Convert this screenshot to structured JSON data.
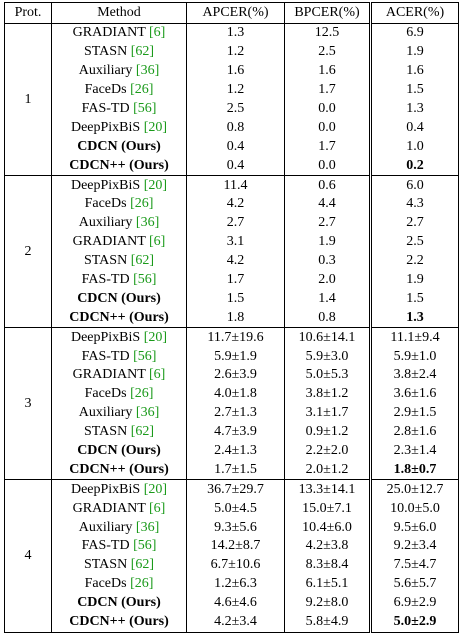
{
  "table": {
    "header": [
      "Prot.",
      "Method",
      "APCER(%)",
      "BPCER(%)",
      "ACER(%)"
    ],
    "groups": [
      {
        "protocol": "1",
        "rows": [
          {
            "method": "GRADIANT",
            "ref": "[6]",
            "apcer": "1.3",
            "bpcer": "12.5",
            "acer": "6.9"
          },
          {
            "method": "STASN",
            "ref": "[62]",
            "apcer": "1.2",
            "bpcer": "2.5",
            "acer": "1.9"
          },
          {
            "method": "Auxiliary",
            "ref": "[36]",
            "apcer": "1.6",
            "bpcer": "1.6",
            "acer": "1.6"
          },
          {
            "method": "FaceDs",
            "ref": "[26]",
            "apcer": "1.2",
            "bpcer": "1.7",
            "acer": "1.5"
          },
          {
            "method": "FAS-TD",
            "ref": "[56]",
            "apcer": "2.5",
            "bpcer": "0.0",
            "acer": "1.3"
          },
          {
            "method": "DeepPixBiS",
            "ref": "[20]",
            "apcer": "0.8",
            "bpcer": "0.0",
            "acer": "0.4"
          },
          {
            "method": "CDCN (Ours)",
            "apcer": "0.4",
            "bpcer": "1.7",
            "acer": "1.0"
          },
          {
            "method": "CDCN++ (Ours)",
            "apcer": "0.4",
            "bpcer": "0.0",
            "acer": "0.2",
            "best": true
          }
        ]
      },
      {
        "protocol": "2",
        "rows": [
          {
            "method": "DeepPixBiS",
            "ref": "[20]",
            "apcer": "11.4",
            "bpcer": "0.6",
            "acer": "6.0"
          },
          {
            "method": "FaceDs",
            "ref": "[26]",
            "apcer": "4.2",
            "bpcer": "4.4",
            "acer": "4.3"
          },
          {
            "method": "Auxiliary",
            "ref": "[36]",
            "apcer": "2.7",
            "bpcer": "2.7",
            "acer": "2.7"
          },
          {
            "method": "GRADIANT",
            "ref": "[6]",
            "apcer": "3.1",
            "bpcer": "1.9",
            "acer": "2.5"
          },
          {
            "method": "STASN",
            "ref": "[62]",
            "apcer": "4.2",
            "bpcer": "0.3",
            "acer": "2.2"
          },
          {
            "method": "FAS-TD",
            "ref": "[56]",
            "apcer": "1.7",
            "bpcer": "2.0",
            "acer": "1.9"
          },
          {
            "method": "CDCN (Ours)",
            "apcer": "1.5",
            "bpcer": "1.4",
            "acer": "1.5"
          },
          {
            "method": "CDCN++ (Ours)",
            "apcer": "1.8",
            "bpcer": "0.8",
            "acer": "1.3",
            "best": true
          }
        ]
      },
      {
        "protocol": "3",
        "rows": [
          {
            "method": "DeepPixBiS",
            "ref": "[20]",
            "apcer": "11.7±19.6",
            "bpcer": "10.6±14.1",
            "acer": "11.1±9.4"
          },
          {
            "method": "FAS-TD",
            "ref": "[56]",
            "apcer": "5.9±1.9",
            "bpcer": "5.9±3.0",
            "acer": "5.9±1.0"
          },
          {
            "method": "GRADIANT",
            "ref": "[6]",
            "apcer": "2.6±3.9",
            "bpcer": "5.0±5.3",
            "acer": "3.8±2.4"
          },
          {
            "method": "FaceDs",
            "ref": "[26]",
            "apcer": "4.0±1.8",
            "bpcer": "3.8±1.2",
            "acer": "3.6±1.6"
          },
          {
            "method": "Auxiliary",
            "ref": "[36]",
            "apcer": "2.7±1.3",
            "bpcer": "3.1±1.7",
            "acer": "2.9±1.5"
          },
          {
            "method": "STASN",
            "ref": "[62]",
            "apcer": "4.7±3.9",
            "bpcer": "0.9±1.2",
            "acer": "2.8±1.6"
          },
          {
            "method": "CDCN (Ours)",
            "apcer": "2.4±1.3",
            "bpcer": "2.2±2.0",
            "acer": "2.3±1.4"
          },
          {
            "method": "CDCN++ (Ours)",
            "apcer": "1.7±1.5",
            "bpcer": "2.0±1.2",
            "acer": "1.8±0.7",
            "best": true
          }
        ]
      },
      {
        "protocol": "4",
        "rows": [
          {
            "method": "DeepPixBiS",
            "ref": "[20]",
            "apcer": "36.7±29.7",
            "bpcer": "13.3±14.1",
            "acer": "25.0±12.7"
          },
          {
            "method": "GRADIANT",
            "ref": "[6]",
            "apcer": "5.0±4.5",
            "bpcer": "15.0±7.1",
            "acer": "10.0±5.0"
          },
          {
            "method": "Auxiliary",
            "ref": "[36]",
            "apcer": "9.3±5.6",
            "bpcer": "10.4±6.0",
            "acer": "9.5±6.0"
          },
          {
            "method": "FAS-TD",
            "ref": "[56]",
            "apcer": "14.2±8.7",
            "bpcer": "4.2±3.8",
            "acer": "9.2±3.4"
          },
          {
            "method": "STASN",
            "ref": "[62]",
            "apcer": "6.7±10.6",
            "bpcer": "8.3±8.4",
            "acer": "7.5±4.7"
          },
          {
            "method": "FaceDs",
            "ref": "[26]",
            "apcer": "1.2±6.3",
            "bpcer": "6.1±5.1",
            "acer": "5.6±5.7"
          },
          {
            "method": "CDCN (Ours)",
            "apcer": "4.6±4.6",
            "bpcer": "9.2±8.0",
            "acer": "6.9±2.9"
          },
          {
            "method": "CDCN++ (Ours)",
            "apcer": "4.2±3.4",
            "bpcer": "5.8±4.9",
            "acer": "5.0±2.9",
            "best": true
          }
        ]
      }
    ]
  }
}
